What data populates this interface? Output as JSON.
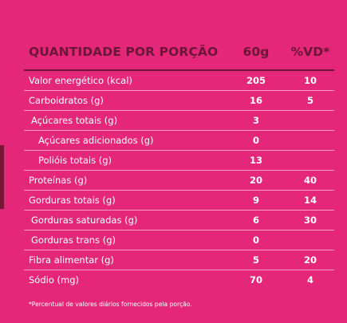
{
  "colors": {
    "background": "#e5277a",
    "heading": "#6a1638",
    "text": "#ffffff",
    "side_tab": "#7a1538"
  },
  "header": {
    "label": "QUANTIDADE POR PORÇÃO",
    "col1": "60g",
    "col2": "%VD*"
  },
  "rows": [
    {
      "label": "Valor energético (kcal)",
      "value": "205",
      "vd": "10"
    },
    {
      "label": "Carboidratos (g)",
      "value": "16",
      "vd": "5"
    },
    {
      "label": "Açúcares totais (g)",
      "value": "3",
      "vd": ""
    },
    {
      "label": "Açúcares adicionados (g)",
      "value": "0",
      "vd": ""
    },
    {
      "label": "Polióis totais (g)",
      "value": "13",
      "vd": ""
    },
    {
      "label": "Proteínas (g)",
      "value": "20",
      "vd": "40"
    },
    {
      "label": "Gorduras totais (g)",
      "value": "9",
      "vd": "14"
    },
    {
      "label": "Gorduras saturadas (g)",
      "value": "6",
      "vd": "30"
    },
    {
      "label": "Gorduras trans (g)",
      "value": "0",
      "vd": ""
    },
    {
      "label": "Fibra alimentar (g)",
      "value": "5",
      "vd": "20"
    },
    {
      "label": "Sódio (mg)",
      "value": "70",
      "vd": "4"
    }
  ],
  "footnote": "*Percentual de valores diários fornecidos pela porção."
}
